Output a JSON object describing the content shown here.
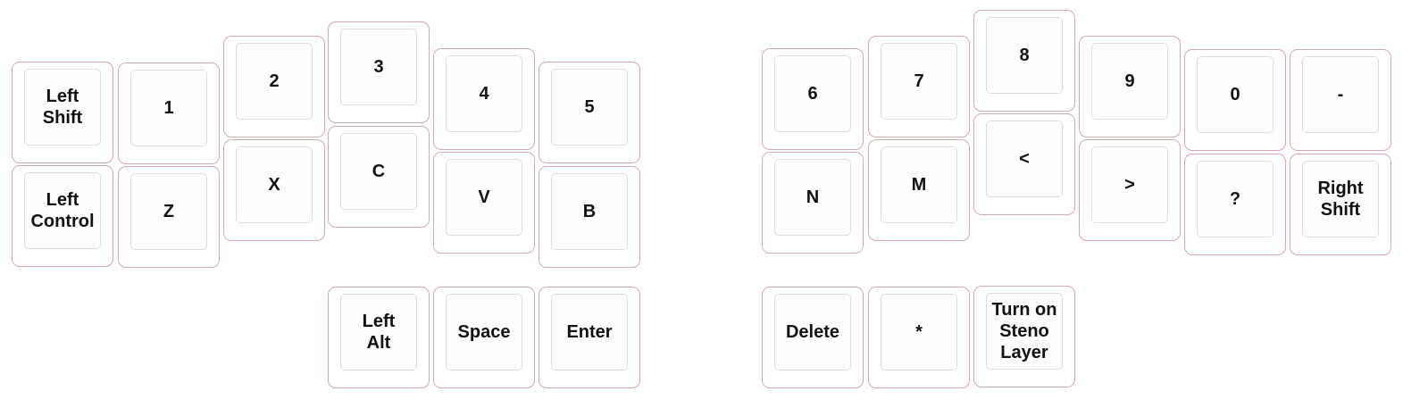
{
  "colors": {
    "key_border": "#d4a9ad",
    "cap_border": "#dddddd",
    "text": "#111111"
  },
  "left_hand": [
    {
      "id": "left-shift",
      "label": "Left\nShift"
    },
    {
      "id": "1",
      "label": "1"
    },
    {
      "id": "2",
      "label": "2"
    },
    {
      "id": "3",
      "label": "3"
    },
    {
      "id": "4",
      "label": "4"
    },
    {
      "id": "5",
      "label": "5"
    },
    {
      "id": "left-control",
      "label": "Left\nControl"
    },
    {
      "id": "z",
      "label": "Z"
    },
    {
      "id": "x",
      "label": "X"
    },
    {
      "id": "c",
      "label": "C"
    },
    {
      "id": "v",
      "label": "V"
    },
    {
      "id": "b",
      "label": "B"
    },
    {
      "id": "left-alt",
      "label": "Left\nAlt"
    },
    {
      "id": "space",
      "label": "Space"
    },
    {
      "id": "enter",
      "label": "Enter"
    }
  ],
  "right_hand": [
    {
      "id": "6",
      "label": "6"
    },
    {
      "id": "7",
      "label": "7"
    },
    {
      "id": "8",
      "label": "8"
    },
    {
      "id": "9",
      "label": "9"
    },
    {
      "id": "0",
      "label": "0"
    },
    {
      "id": "minus",
      "label": "-"
    },
    {
      "id": "n",
      "label": "N"
    },
    {
      "id": "m",
      "label": "M"
    },
    {
      "id": "less-than",
      "label": "<"
    },
    {
      "id": "greater-than",
      "label": ">"
    },
    {
      "id": "question",
      "label": "?"
    },
    {
      "id": "right-shift",
      "label": "Right\nShift"
    },
    {
      "id": "delete",
      "label": "Delete"
    },
    {
      "id": "asterisk",
      "label": "*"
    },
    {
      "id": "steno-layer",
      "label": "Turn on\nSteno\nLayer"
    }
  ]
}
